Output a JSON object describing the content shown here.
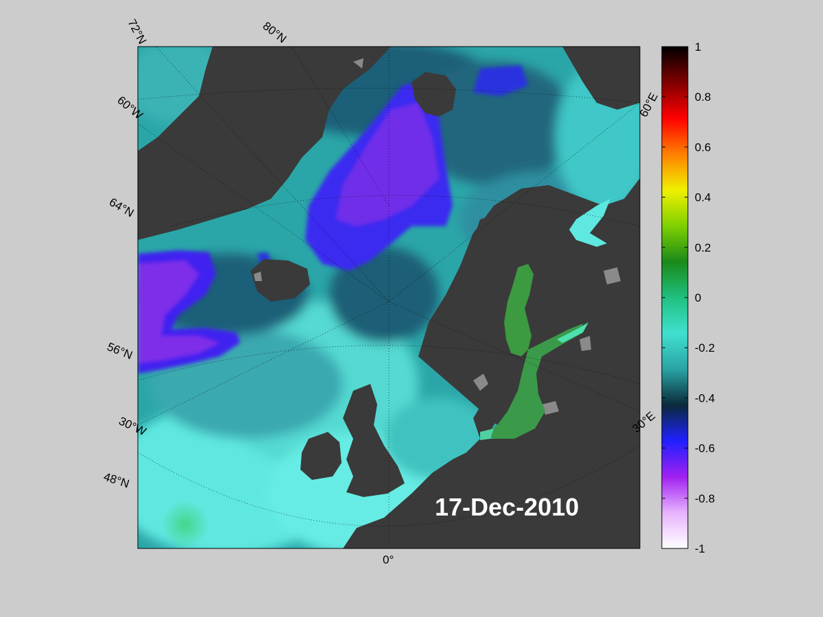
{
  "date_label": "17-Dec-2010",
  "grid_labels": {
    "lat_72": "72°N",
    "lat_80": "80°N",
    "lon_60w": "60°W",
    "lat_64": "64°N",
    "lat_56": "56°N",
    "lon_30w": "30°W",
    "lat_48": "48°N",
    "lon_0": "0°",
    "lon_30e": "30°E",
    "lon_60e": "60°E"
  },
  "colorbar": {
    "min": -1,
    "max": 1,
    "ticks": [
      "1",
      "0.8",
      "0.6",
      "0.4",
      "0.2",
      "0",
      "-0.2",
      "-0.4",
      "-0.6",
      "-0.8",
      "-1"
    ],
    "colors": [
      "#ffffff",
      "#e6b3ff",
      "#a020f0",
      "#2020ff",
      "#0a2a3a",
      "#2aa3a3",
      "#40e0d0",
      "#20c080",
      "#1a8a1a",
      "#80d000",
      "#f0f000",
      "#ff8000",
      "#ff0000",
      "#800000",
      "#000000"
    ]
  },
  "map_colors": {
    "land": "#3a3a3a",
    "land_grey": "#8a8a8a",
    "ocean_light": "#5ee8e0",
    "ocean_mid": "#2ba6a8",
    "ocean_dark": "#1d5f78",
    "blue_patch": "#3a2cf0",
    "purple_patch": "#8a2be2",
    "baltic": "#3c9a40"
  }
}
